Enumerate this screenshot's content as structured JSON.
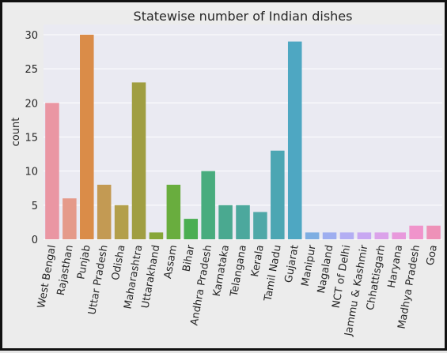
{
  "chart_data": {
    "type": "bar",
    "title": "Statewise number of Indian dishes",
    "xlabel": "",
    "ylabel": "count",
    "ylim": [
      0,
      31.5
    ],
    "yticks": [
      0,
      5,
      10,
      15,
      20,
      25,
      30
    ],
    "grid": true,
    "categories": [
      "West Bengal",
      "Rajasthan",
      "Punjab",
      "Uttar Pradesh",
      "Odisha",
      "Maharashtra",
      "Uttarakhand",
      "Assam",
      "Bihar",
      "Andhra Pradesh",
      "Karnataka",
      "Telangana",
      "Kerala",
      "Tamil Nadu",
      "Gujarat",
      "Manipur",
      "Nagaland",
      "NCT of Delhi",
      "Jammu & Kashmir",
      "Chhattisgarh",
      "Haryana",
      "Madhya Pradesh",
      "Goa"
    ],
    "values": [
      20,
      6,
      30,
      8,
      5,
      23,
      1,
      8,
      3,
      10,
      5,
      5,
      4,
      13,
      29,
      1,
      1,
      1,
      1,
      1,
      1,
      2,
      2
    ],
    "colors": [
      "#ea96a3",
      "#e59a8a",
      "#da8c48",
      "#c39a53",
      "#b39f4b",
      "#a09e41",
      "#87a638",
      "#69ad3e",
      "#4aae52",
      "#48ac7e",
      "#4aa990",
      "#4ca89d",
      "#4fa8a8",
      "#4ca6b3",
      "#4ea7c2",
      "#7eaee2",
      "#9eaef0",
      "#b3aef3",
      "#c8a8f2",
      "#dba2ea",
      "#e899dc",
      "#f094cb",
      "#ee91b8"
    ]
  }
}
